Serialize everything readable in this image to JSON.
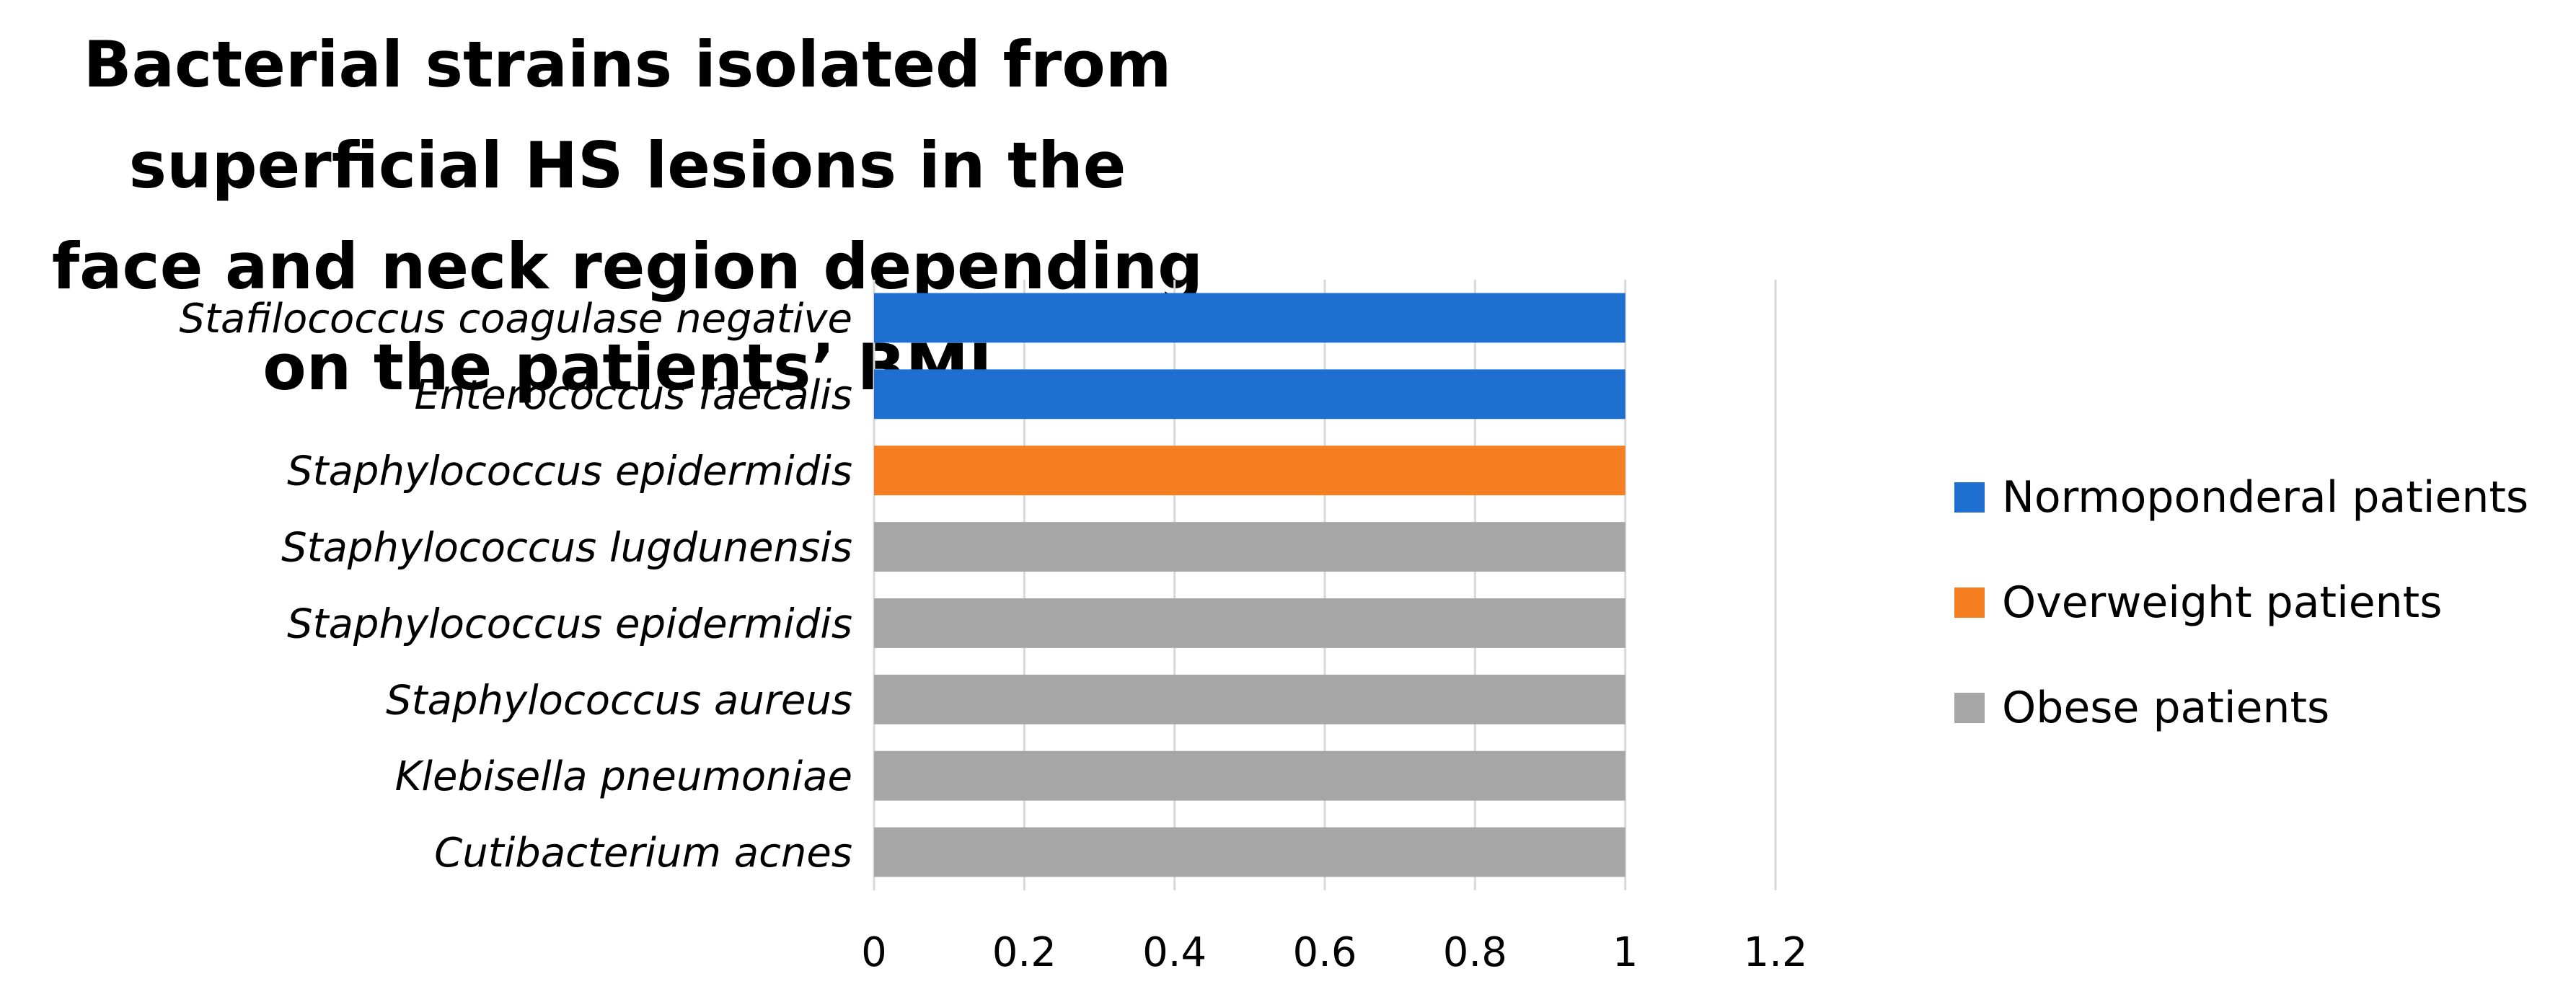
{
  "chart_data": {
    "type": "bar",
    "orientation": "horizontal",
    "title": "Bacterial strains isolated from superficial HS lesions in the face and neck region depending on the patients’ BMI",
    "title_lines": [
      "Bacterial strains isolated from superficial HS lesions in the",
      "face and neck region depending on the patients’ BMI"
    ],
    "categories": [
      "Stafilococcus coagulase negative",
      "Enterococcus faecalis",
      "Staphylococcus epidermidis",
      "Staphylococcus lugdunensis",
      "Staphylococcus epidermidis",
      "Staphylococcus aureus",
      "Klebisella pneumoniae",
      "Cutibacterium acnes"
    ],
    "series": [
      {
        "name": "Normoponderal patients",
        "color": "#1f6fd1",
        "values": [
          1,
          1,
          0,
          0,
          0,
          0,
          0,
          0
        ]
      },
      {
        "name": "Overweight patients",
        "color": "#f57f20",
        "values": [
          0,
          0,
          1,
          0,
          0,
          0,
          0,
          0
        ]
      },
      {
        "name": "Obese patients",
        "color": "#a6a6a6",
        "values": [
          0,
          0,
          0,
          1,
          1,
          1,
          1,
          1
        ]
      }
    ],
    "xlim": [
      0,
      1.2
    ],
    "xticks": [
      "0",
      "0.2",
      "0.4",
      "0.6",
      "0.8",
      "1",
      "1.2"
    ],
    "xlabel": "",
    "ylabel": "",
    "grid": "vertical",
    "legend_position": "right"
  }
}
